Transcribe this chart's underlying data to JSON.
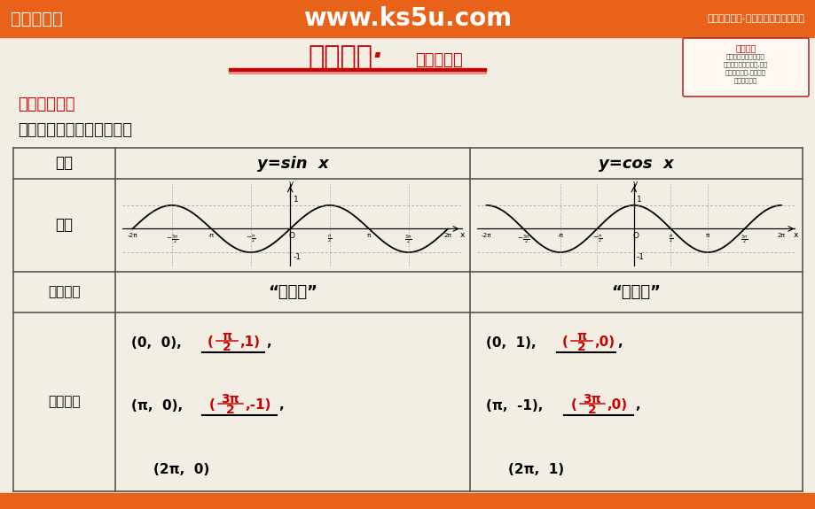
{
  "header_bg": "#E8621A",
  "header_text_left": "高考资源网",
  "header_text_center": "www.ks5u.com",
  "header_text_right": "《高考资源网-你身边的高考专家！》",
  "slide_bg": "#F2EEE4",
  "red_color": "#CC0000",
  "dark_color": "#1A1A1A",
  "table_line_color": "#555555",
  "note_box_color": "#8B0000",
  "label_zhi": "《知识提炼》",
  "subtitle": "正弦函数、余弦函数的图象",
  "title_main": "新知探求·",
  "title_sub": "目主学习区",
  "col0_label": "函数",
  "row1_label": "图象",
  "row2_label": "图象画法",
  "row3_label": "关键五点",
  "wudianfa": "“五点法”",
  "orange_footer_bg": "#E8621A"
}
